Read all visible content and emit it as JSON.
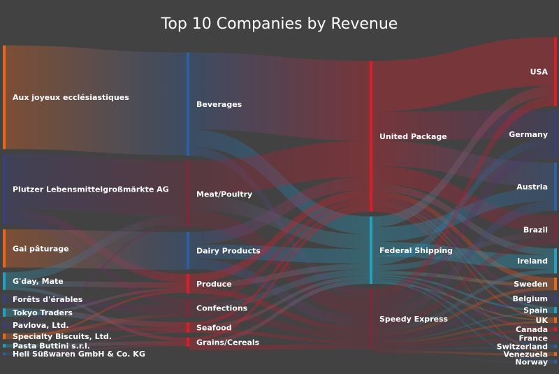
{
  "chart_data": {
    "type": "sankey",
    "title": "Top 10 Companies by Revenue",
    "colors": {
      "background": "#424242",
      "orange": "#e8651e",
      "indigo": "#3d3f7a",
      "teal": "#26a0bf",
      "blue": "#2f5f9e",
      "red": "#d81e2a",
      "crimson": "#7a2a3e"
    },
    "columns": [
      [
        {
          "name": "Aux joyeux ecclésiastiques",
          "value": 147,
          "color": "orange"
        },
        {
          "name": "Plutzer Lebensmittelgroßmärkte AG",
          "value": 100,
          "color": "indigo"
        },
        {
          "name": "Gai pâturage",
          "value": 54,
          "color": "orange"
        },
        {
          "name": "G'day, Mate",
          "value": 25,
          "color": "teal"
        },
        {
          "name": "Forêts d'érables",
          "value": 12,
          "color": "indigo"
        },
        {
          "name": "Tokyo Traders",
          "value": 12,
          "color": "teal"
        },
        {
          "name": "Pavlova, Ltd.",
          "value": 10,
          "color": "indigo"
        },
        {
          "name": "Specialty Biscuits, Ltd.",
          "value": 8,
          "color": "orange"
        },
        {
          "name": "Pasta Buttini s.r.l.",
          "value": 5,
          "color": "teal"
        },
        {
          "name": "Heli Süßwaren GmbH & Co. KG",
          "value": 4,
          "color": "blue"
        }
      ],
      [
        {
          "name": "Beverages",
          "value": 148,
          "color": "blue"
        },
        {
          "name": "Meat/Poultry",
          "value": 95,
          "color": "crimson"
        },
        {
          "name": "Dairy Products",
          "value": 53,
          "color": "blue"
        },
        {
          "name": "Produce",
          "value": 28,
          "color": "red"
        },
        {
          "name": "Confections",
          "value": 27,
          "color": "crimson"
        },
        {
          "name": "Seafood",
          "value": 15,
          "color": "red"
        },
        {
          "name": "Grains/Cereals",
          "value": 13,
          "color": "red"
        }
      ],
      [
        {
          "name": "United Package",
          "value": 208,
          "color": "red"
        },
        {
          "name": "Federal Shipping",
          "value": 93,
          "color": "teal"
        },
        {
          "name": "Speedy Express",
          "value": 83,
          "color": "crimson"
        }
      ],
      [
        {
          "name": "USA",
          "value": 99,
          "color": "red"
        },
        {
          "name": "Germany",
          "value": 69,
          "color": "indigo"
        },
        {
          "name": "Austria",
          "value": 69,
          "color": "blue"
        },
        {
          "name": "Brazil",
          "value": 42,
          "color": "crimson"
        },
        {
          "name": "Ireland",
          "value": 36,
          "color": "teal"
        },
        {
          "name": "Sweden",
          "value": 18,
          "color": "orange"
        },
        {
          "name": "Belgium",
          "value": 12,
          "color": "indigo"
        },
        {
          "name": "Spain",
          "value": 9,
          "color": "teal"
        },
        {
          "name": "UK",
          "value": 8,
          "color": "orange"
        },
        {
          "name": "Canada",
          "value": 6,
          "color": "red"
        },
        {
          "name": "France",
          "value": 7,
          "color": "crimson"
        },
        {
          "name": "Switzerland",
          "value": 5,
          "color": "blue"
        },
        {
          "name": "Venezuela",
          "value": 5,
          "color": "orange"
        },
        {
          "name": "Norway",
          "value": 5,
          "color": "blue"
        }
      ]
    ],
    "links": [
      {
        "source": "Aux joyeux ecclésiastiques",
        "target": "Beverages",
        "value": 147
      },
      {
        "source": "Plutzer Lebensmittelgroßmärkte AG",
        "target": "Meat/Poultry",
        "value": 78
      },
      {
        "source": "Plutzer Lebensmittelgroßmärkte AG",
        "target": "Produce",
        "value": 12
      },
      {
        "source": "Plutzer Lebensmittelgroßmärkte AG",
        "target": "Confections",
        "value": 10
      },
      {
        "source": "Gai pâturage",
        "target": "Dairy Products",
        "value": 54
      },
      {
        "source": "G'day, Mate",
        "target": "Meat/Poultry",
        "value": 12
      },
      {
        "source": "G'day, Mate",
        "target": "Produce",
        "value": 8
      },
      {
        "source": "G'day, Mate",
        "target": "Grains/Cereals",
        "value": 5
      },
      {
        "source": "Forêts d'érables",
        "target": "Confections",
        "value": 12
      },
      {
        "source": "Tokyo Traders",
        "target": "Seafood",
        "value": 8
      },
      {
        "source": "Tokyo Traders",
        "target": "Produce",
        "value": 4
      },
      {
        "source": "Pavlova, Ltd.",
        "target": "Meat/Poultry",
        "value": 5
      },
      {
        "source": "Pavlova, Ltd.",
        "target": "Seafood",
        "value": 5
      },
      {
        "source": "Specialty Biscuits, Ltd.",
        "target": "Confections",
        "value": 5
      },
      {
        "source": "Specialty Biscuits, Ltd.",
        "target": "Produce",
        "value": 3
      },
      {
        "source": "Pasta Buttini s.r.l.",
        "target": "Grains/Cereals",
        "value": 5
      },
      {
        "source": "Heli Süßwaren GmbH & Co. KG",
        "target": "Grains/Cereals",
        "value": 2
      },
      {
        "source": "Heli Süßwaren GmbH & Co. KG",
        "target": "Seafood",
        "value": 2
      },
      {
        "source": "Beverages",
        "target": "United Package",
        "value": 110
      },
      {
        "source": "Beverages",
        "target": "Federal Shipping",
        "value": 25
      },
      {
        "source": "Beverages",
        "target": "Speedy Express",
        "value": 13
      },
      {
        "source": "Meat/Poultry",
        "target": "United Package",
        "value": 50
      },
      {
        "source": "Meat/Poultry",
        "target": "Federal Shipping",
        "value": 20
      },
      {
        "source": "Meat/Poultry",
        "target": "Speedy Express",
        "value": 25
      },
      {
        "source": "Dairy Products",
        "target": "United Package",
        "value": 18
      },
      {
        "source": "Dairy Products",
        "target": "Federal Shipping",
        "value": 20
      },
      {
        "source": "Dairy Products",
        "target": "Speedy Express",
        "value": 15
      },
      {
        "source": "Produce",
        "target": "United Package",
        "value": 12
      },
      {
        "source": "Produce",
        "target": "Federal Shipping",
        "value": 8
      },
      {
        "source": "Produce",
        "target": "Speedy Express",
        "value": 8
      },
      {
        "source": "Confections",
        "target": "United Package",
        "value": 8
      },
      {
        "source": "Confections",
        "target": "Federal Shipping",
        "value": 9
      },
      {
        "source": "Confections",
        "target": "Speedy Express",
        "value": 10
      },
      {
        "source": "Seafood",
        "target": "United Package",
        "value": 5
      },
      {
        "source": "Seafood",
        "target": "Federal Shipping",
        "value": 5
      },
      {
        "source": "Seafood",
        "target": "Speedy Express",
        "value": 5
      },
      {
        "source": "Grains/Cereals",
        "target": "United Package",
        "value": 5
      },
      {
        "source": "Grains/Cereals",
        "target": "Federal Shipping",
        "value": 6
      },
      {
        "source": "Grains/Cereals",
        "target": "Speedy Express",
        "value": 7
      },
      {
        "source": "United Package",
        "target": "USA",
        "value": 70
      },
      {
        "source": "United Package",
        "target": "Germany",
        "value": 40
      },
      {
        "source": "United Package",
        "target": "Austria",
        "value": 35
      },
      {
        "source": "United Package",
        "target": "Brazil",
        "value": 25
      },
      {
        "source": "United Package",
        "target": "Ireland",
        "value": 10
      },
      {
        "source": "United Package",
        "target": "Sweden",
        "value": 8
      },
      {
        "source": "United Package",
        "target": "Belgium",
        "value": 6
      },
      {
        "source": "United Package",
        "target": "Spain",
        "value": 4
      },
      {
        "source": "United Package",
        "target": "UK",
        "value": 3
      },
      {
        "source": "United Package",
        "target": "France",
        "value": 3
      },
      {
        "source": "United Package",
        "target": "Venezuela",
        "value": 2
      },
      {
        "source": "United Package",
        "target": "Norway",
        "value": 2
      },
      {
        "source": "Federal Shipping",
        "target": "USA",
        "value": 15
      },
      {
        "source": "Federal Shipping",
        "target": "Austria",
        "value": 20
      },
      {
        "source": "Federal Shipping",
        "target": "Ireland",
        "value": 20
      },
      {
        "source": "Federal Shipping",
        "target": "Germany",
        "value": 12
      },
      {
        "source": "Federal Shipping",
        "target": "Brazil",
        "value": 8
      },
      {
        "source": "Federal Shipping",
        "target": "Sweden",
        "value": 5
      },
      {
        "source": "Federal Shipping",
        "target": "Spain",
        "value": 3
      },
      {
        "source": "Federal Shipping",
        "target": "Canada",
        "value": 3
      },
      {
        "source": "Federal Shipping",
        "target": "Switzerland",
        "value": 3
      },
      {
        "source": "Federal Shipping",
        "target": "Norway",
        "value": 2
      },
      {
        "source": "Federal Shipping",
        "target": "UK",
        "value": 2
      },
      {
        "source": "Speedy Express",
        "target": "USA",
        "value": 14
      },
      {
        "source": "Speedy Express",
        "target": "Germany",
        "value": 17
      },
      {
        "source": "Speedy Express",
        "target": "Austria",
        "value": 14
      },
      {
        "source": "Speedy Express",
        "target": "Brazil",
        "value": 9
      },
      {
        "source": "Speedy Express",
        "target": "Ireland",
        "value": 6
      },
      {
        "source": "Speedy Express",
        "target": "Sweden",
        "value": 5
      },
      {
        "source": "Speedy Express",
        "target": "Belgium",
        "value": 6
      },
      {
        "source": "Speedy Express",
        "target": "Spain",
        "value": 2
      },
      {
        "source": "Speedy Express",
        "target": "UK",
        "value": 3
      },
      {
        "source": "Speedy Express",
        "target": "Canada",
        "value": 3
      },
      {
        "source": "Speedy Express",
        "target": "France",
        "value": 4
      },
      {
        "source": "Speedy Express",
        "target": "Switzerland",
        "value": 2
      },
      {
        "source": "Speedy Express",
        "target": "Venezuela",
        "value": 3
      },
      {
        "source": "Speedy Express",
        "target": "Norway",
        "value": 1
      }
    ]
  }
}
